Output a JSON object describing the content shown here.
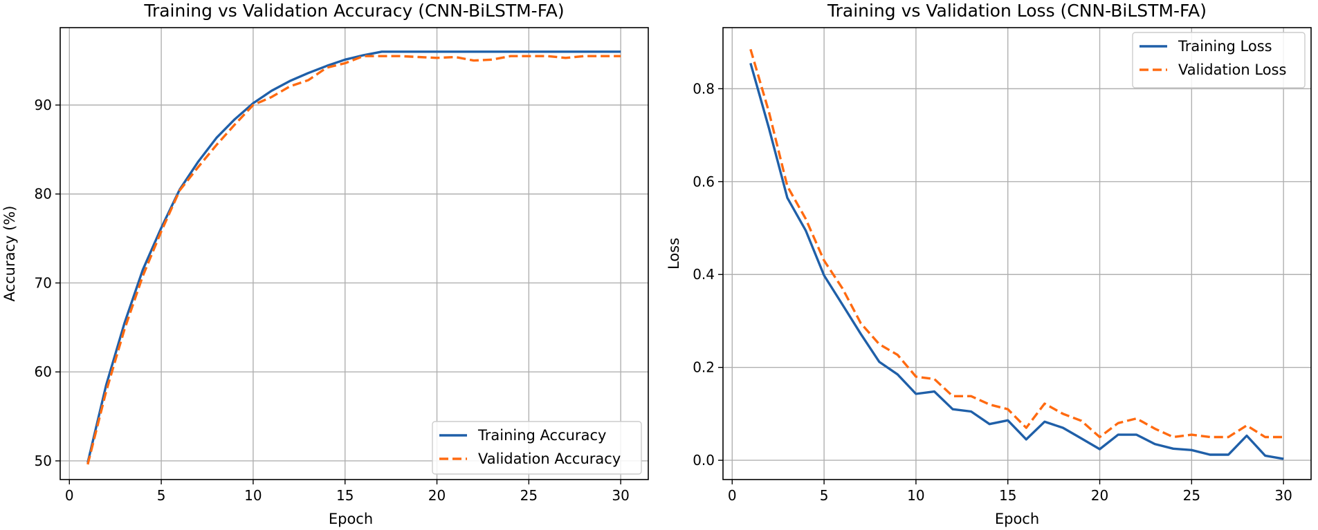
{
  "colors": {
    "training": "#1f5fa8",
    "validation": "#ff6a10"
  },
  "chart_data": [
    {
      "type": "line",
      "title": "Training vs Validation Accuracy (CNN-BiLSTM-FA)",
      "xlabel": "Epoch",
      "ylabel": "Accuracy (%)",
      "xlim": [
        -0.5,
        31.5
      ],
      "ylim": [
        47.9,
        98.7
      ],
      "xticks": [
        0,
        5,
        10,
        15,
        20,
        25,
        30
      ],
      "yticks": [
        50,
        60,
        70,
        80,
        90
      ],
      "xtick_labels": [
        "0",
        "5",
        "10",
        "15",
        "20",
        "25",
        "30"
      ],
      "ytick_labels": [
        "50",
        "60",
        "70",
        "80",
        "90"
      ],
      "grid": true,
      "legend_position": "lower-right",
      "x": [
        1,
        2,
        3,
        4,
        5,
        6,
        7,
        8,
        9,
        10,
        11,
        12,
        13,
        14,
        15,
        16,
        17,
        18,
        19,
        20,
        21,
        22,
        23,
        24,
        25,
        26,
        27,
        28,
        29,
        30
      ],
      "series": [
        {
          "name": "Training Accuracy",
          "style": "solid",
          "values": [
            49.8,
            58.5,
            65.5,
            71.5,
            76.2,
            80.5,
            83.6,
            86.3,
            88.4,
            90.2,
            91.6,
            92.7,
            93.6,
            94.4,
            95.1,
            95.6,
            96.0,
            96.0,
            96.0,
            96.0,
            96.0,
            96.0,
            96.0,
            96.0,
            96.0,
            96.0,
            96.0,
            96.0,
            96.0,
            96.0
          ]
        },
        {
          "name": "Validation Accuracy",
          "style": "dashed",
          "values": [
            49.6,
            57.8,
            64.8,
            70.8,
            75.8,
            80.4,
            83.0,
            85.5,
            87.8,
            90.0,
            90.9,
            92.1,
            92.8,
            94.2,
            94.7,
            95.5,
            95.5,
            95.5,
            95.4,
            95.3,
            95.4,
            95.0,
            95.1,
            95.5,
            95.5,
            95.5,
            95.3,
            95.5,
            95.5,
            95.5
          ]
        }
      ]
    },
    {
      "type": "line",
      "title": "Training vs Validation Loss (CNN-BiLSTM-FA)",
      "xlabel": "Epoch",
      "ylabel": "Loss",
      "xlim": [
        -0.5,
        31.5
      ],
      "ylim": [
        -0.0415,
        0.9315
      ],
      "xticks": [
        0,
        5,
        10,
        15,
        20,
        25,
        30
      ],
      "yticks": [
        0.0,
        0.2,
        0.4,
        0.6,
        0.8
      ],
      "xtick_labels": [
        "0",
        "5",
        "10",
        "15",
        "20",
        "25",
        "30"
      ],
      "ytick_labels": [
        "0.0",
        "0.2",
        "0.4",
        "0.6",
        "0.8"
      ],
      "grid": true,
      "legend_position": "upper-right",
      "x": [
        1,
        2,
        3,
        4,
        5,
        6,
        7,
        8,
        9,
        10,
        11,
        12,
        13,
        14,
        15,
        16,
        17,
        18,
        19,
        20,
        21,
        22,
        23,
        24,
        25,
        26,
        27,
        28,
        29,
        30
      ],
      "series": [
        {
          "name": "Training Loss",
          "style": "solid",
          "values": [
            0.855,
            0.715,
            0.565,
            0.495,
            0.398,
            0.335,
            0.272,
            0.212,
            0.185,
            0.143,
            0.148,
            0.11,
            0.105,
            0.078,
            0.086,
            0.045,
            0.083,
            0.07,
            0.047,
            0.024,
            0.055,
            0.055,
            0.035,
            0.025,
            0.022,
            0.012,
            0.012,
            0.053,
            0.01,
            0.003
          ]
        },
        {
          "name": "Validation Loss",
          "style": "dashed",
          "values": [
            0.885,
            0.75,
            0.59,
            0.52,
            0.43,
            0.37,
            0.295,
            0.25,
            0.227,
            0.18,
            0.175,
            0.138,
            0.138,
            0.12,
            0.11,
            0.07,
            0.122,
            0.1,
            0.085,
            0.05,
            0.08,
            0.09,
            0.068,
            0.05,
            0.055,
            0.05,
            0.05,
            0.075,
            0.05,
            0.05
          ]
        }
      ]
    }
  ]
}
